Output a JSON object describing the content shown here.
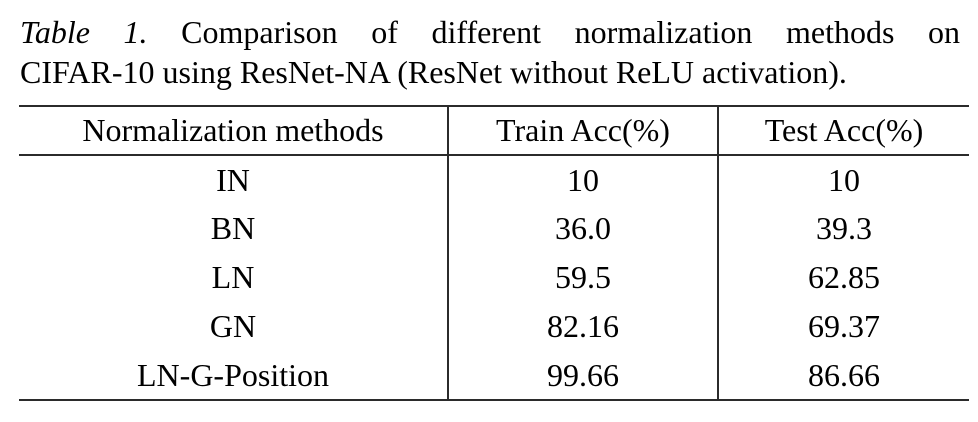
{
  "caption": {
    "label": "Table 1.",
    "line1_rest": "Comparison of different normalization methods on",
    "line2": "CIFAR-10 using ResNet-NA (ResNet without ReLU activation)."
  },
  "table": {
    "columns": [
      "Normalization methods",
      "Train Acc(%)",
      "Test Acc(%)"
    ],
    "rows": [
      {
        "method": "IN",
        "train_acc": "10",
        "test_acc": "10"
      },
      {
        "method": "BN",
        "train_acc": "36.0",
        "test_acc": "39.3"
      },
      {
        "method": "LN",
        "train_acc": "59.5",
        "test_acc": "62.85"
      },
      {
        "method": "GN",
        "train_acc": "82.16",
        "test_acc": "69.37"
      },
      {
        "method": "LN-G-Position",
        "train_acc": "99.66",
        "test_acc": "86.66"
      }
    ]
  },
  "chart_data": {
    "type": "table",
    "title": "Table 1. Comparison of different normalization methods on CIFAR-10 using ResNet-NA (ResNet without ReLU activation).",
    "columns": [
      "Normalization methods",
      "Train Acc(%)",
      "Test Acc(%)"
    ],
    "categories": [
      "IN",
      "BN",
      "LN",
      "GN",
      "LN-G-Position"
    ],
    "series": [
      {
        "name": "Train Acc(%)",
        "values": [
          10,
          36.0,
          59.5,
          82.16,
          99.66
        ]
      },
      {
        "name": "Test Acc(%)",
        "values": [
          10,
          39.3,
          62.85,
          69.37,
          86.66
        ]
      }
    ]
  },
  "colors": {
    "rule": "#2b2b2b",
    "text": "#000000",
    "background": "#ffffff"
  }
}
